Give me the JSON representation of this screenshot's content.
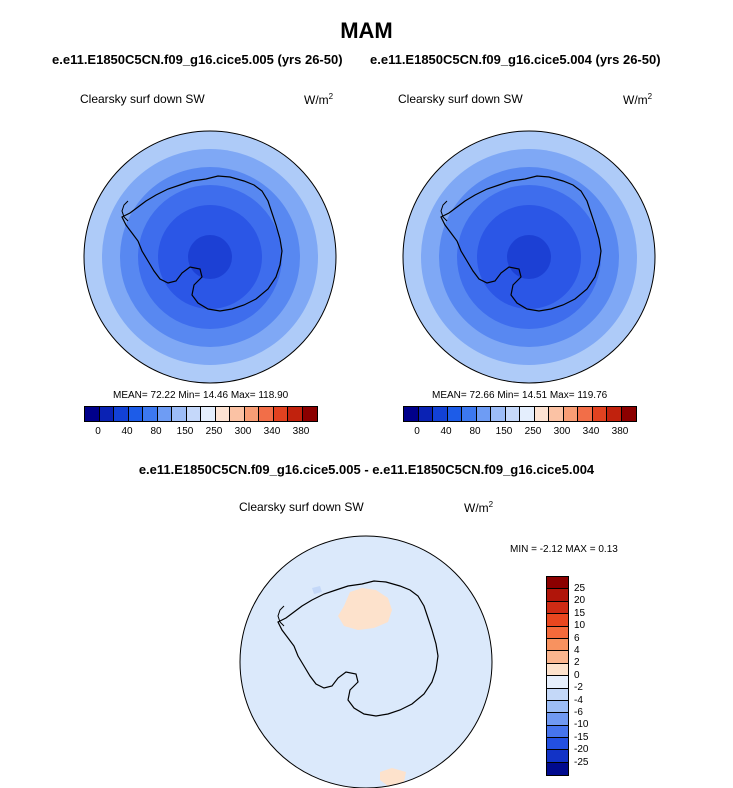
{
  "title": "MAM",
  "case_left": "e.e11.E1850C5CN.f09_g16.cice5.005 (yrs 26-50)",
  "case_right": "e.e11.E1850C5CN.f09_g16.cice5.004 (yrs 26-50)",
  "diff_title": "e.e11.E1850C5CN.f09_g16.cice5.005 - e.e11.E1850C5CN.f09_g16.cice5.004",
  "variable": "Clearsky surf down SW",
  "units_base": "W/m",
  "units_exp": "2",
  "panel_left": {
    "stats": "MEAN=  72.22  Min=  14.46  Max= 118.90"
  },
  "panel_right": {
    "stats": "MEAN=  72.66  Min=  14.51  Max= 119.76"
  },
  "panel_diff": {
    "stats": "MIN =  -2.12 MAX =   0.13"
  },
  "colorbar_main": {
    "colors": [
      "#00008b",
      "#0a22b4",
      "#1241d6",
      "#1d5ce8",
      "#3c78f0",
      "#6e9cf4",
      "#9cbcf7",
      "#c5d8fa",
      "#e4eefd",
      "#fde3d3",
      "#fbc2a4",
      "#f89d75",
      "#f26e48",
      "#e24220",
      "#c1220d",
      "#8b0000"
    ],
    "labels": [
      "0",
      "40",
      "80",
      "150",
      "250",
      "300",
      "340",
      "380"
    ]
  },
  "colorbar_diff": {
    "colors": [
      "#8b0000",
      "#b0150a",
      "#cf2b14",
      "#e9471f",
      "#f46a3b",
      "#f8925f",
      "#fbb58e",
      "#fde2cc",
      "#e6effc",
      "#c4d8f8",
      "#9cbdf6",
      "#7099f2",
      "#4674ed",
      "#2350e2",
      "#1233c6",
      "#000a8e"
    ],
    "labels": [
      "25",
      "20",
      "15",
      "10",
      "6",
      "4",
      "2",
      "0",
      "-2",
      "-4",
      "-6",
      "-10",
      "-15",
      "-20",
      "-25"
    ]
  },
  "map_colors": {
    "ring1": "#aecbf8",
    "ring2": "#7fa8f5",
    "ring3": "#5888f1",
    "ring4": "#3e6ded",
    "ring5": "#2b56e6",
    "ring6": "#1c40d4",
    "diff_bg": "#dbe9fb",
    "diff_pos": "#fde2cc",
    "diff_neg": "#c4d8f8"
  }
}
